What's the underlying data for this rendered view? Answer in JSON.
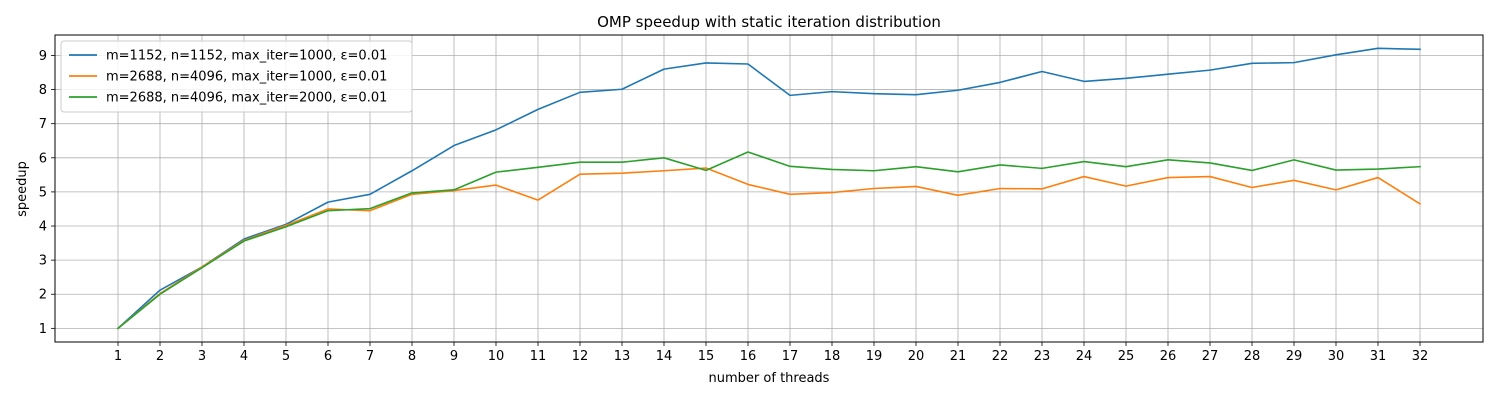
{
  "chart_data": {
    "type": "line",
    "title": "OMP speedup with static iteration distribution",
    "xlabel": "number of threads",
    "ylabel": "speedup",
    "x": [
      1,
      2,
      3,
      4,
      5,
      6,
      7,
      8,
      9,
      10,
      11,
      12,
      13,
      14,
      15,
      16,
      17,
      18,
      19,
      20,
      21,
      22,
      23,
      24,
      25,
      26,
      27,
      28,
      29,
      30,
      31,
      32
    ],
    "x_ticks": [
      "1",
      "2",
      "3",
      "4",
      "5",
      "6",
      "7",
      "8",
      "9",
      "10",
      "11",
      "12",
      "13",
      "14",
      "15",
      "16",
      "17",
      "18",
      "19",
      "20",
      "21",
      "22",
      "23",
      "24",
      "25",
      "26",
      "27",
      "28",
      "29",
      "30",
      "31",
      "32"
    ],
    "y_ticks": [
      "1",
      "2",
      "3",
      "4",
      "5",
      "6",
      "7",
      "8",
      "9"
    ],
    "xlim": [
      -0.5,
      33.5
    ],
    "ylim": [
      0.6,
      9.6
    ],
    "grid": true,
    "legend_position": "top-left",
    "series": [
      {
        "name": "m=1152, n=1152, max_iter=1000, ε=0.01",
        "color": "#1f77b4",
        "values": [
          1.0,
          2.12,
          2.8,
          3.62,
          4.05,
          4.7,
          4.93,
          5.62,
          6.36,
          6.82,
          7.42,
          7.92,
          8.01,
          8.6,
          8.78,
          8.75,
          7.83,
          7.94,
          7.88,
          7.85,
          7.98,
          8.21,
          8.53,
          8.24,
          8.33,
          8.45,
          8.57,
          8.77,
          8.79,
          9.02,
          9.21,
          9.18
        ]
      },
      {
        "name": "m=2688, n=4096, max_iter=1000, ε=0.01",
        "color": "#ff7f0e",
        "values": [
          1.0,
          2.02,
          2.8,
          3.58,
          4.02,
          4.5,
          4.45,
          4.93,
          5.04,
          5.2,
          4.76,
          5.52,
          5.55,
          5.62,
          5.7,
          5.22,
          4.93,
          4.98,
          5.1,
          5.16,
          4.9,
          5.1,
          5.09,
          5.45,
          5.17,
          5.42,
          5.45,
          5.13,
          5.34,
          5.06,
          5.42,
          4.65
        ]
      },
      {
        "name": "m=2688, n=4096, max_iter=2000, ε=0.01",
        "color": "#2ca02c",
        "values": [
          1.0,
          2.0,
          2.78,
          3.56,
          3.98,
          4.45,
          4.51,
          4.97,
          5.06,
          5.58,
          5.72,
          5.87,
          5.87,
          6.0,
          5.63,
          6.17,
          5.75,
          5.66,
          5.62,
          5.74,
          5.59,
          5.79,
          5.69,
          5.89,
          5.74,
          5.94,
          5.85,
          5.63,
          5.94,
          5.64,
          5.67,
          5.74
        ]
      }
    ]
  }
}
